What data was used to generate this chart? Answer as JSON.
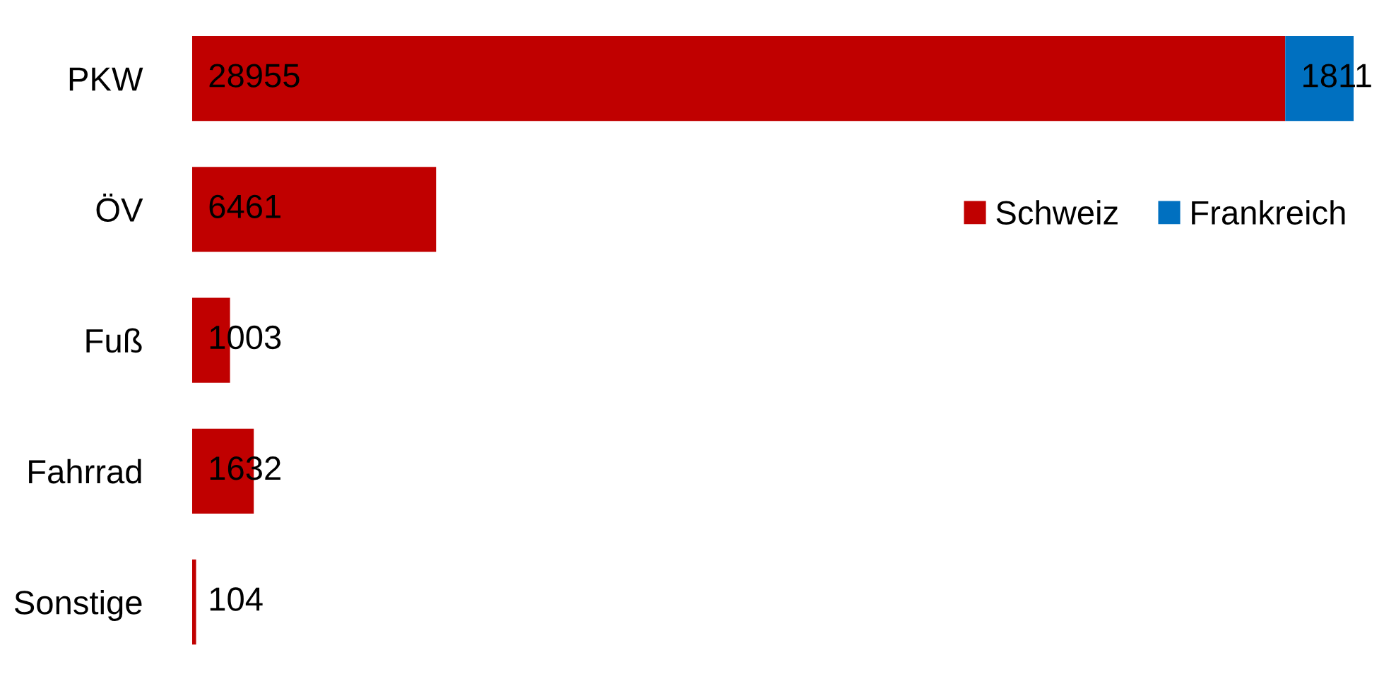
{
  "chart_data": {
    "type": "bar",
    "orientation": "horizontal",
    "stacked": true,
    "data_labels": true,
    "legend": "right",
    "grid": false,
    "categories": [
      "PKW",
      "ÖV",
      "Fuß",
      "Fahrrad",
      "Sonstige"
    ],
    "series": [
      {
        "name": "Schweiz",
        "color": "#c00000",
        "values": [
          28955,
          6461,
          1003,
          1632,
          104
        ]
      },
      {
        "name": "Frankreich",
        "color": "#0070c0",
        "values": [
          1811,
          null,
          null,
          null,
          null
        ]
      }
    ]
  }
}
